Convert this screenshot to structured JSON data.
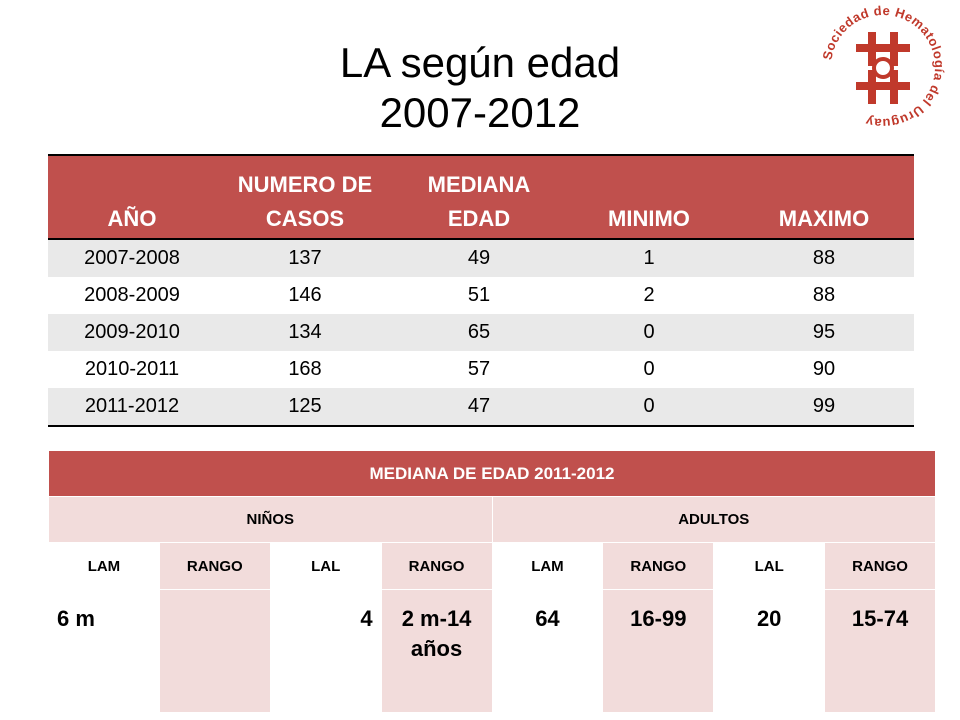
{
  "title": {
    "line1": "LA según edad",
    "line2": "2007-2012"
  },
  "logo": {
    "text": "Sociedad de Hematología del Uruguay",
    "color": "#c0392b"
  },
  "table1": {
    "headers": [
      "AÑO",
      "NUMERO DE CASOS",
      "MEDIANA EDAD",
      "MINIMO",
      "MAXIMO"
    ],
    "header_lines": [
      [
        "AÑO"
      ],
      [
        "NUMERO DE",
        "CASOS"
      ],
      [
        "MEDIANA",
        "EDAD"
      ],
      [
        "MINIMO"
      ],
      [
        "MAXIMO"
      ]
    ],
    "rows": [
      [
        "2007-2008",
        "137",
        "49",
        "1",
        "88"
      ],
      [
        "2008-2009",
        "146",
        "51",
        "2",
        "88"
      ],
      [
        "2009-2010",
        "134",
        "65",
        "0",
        "95"
      ],
      [
        "2010-2011",
        "168",
        "57",
        "0",
        "90"
      ],
      [
        "2011-2012",
        "125",
        "47",
        "0",
        "99"
      ]
    ]
  },
  "table2": {
    "title": "MEDIANA DE EDAD 2011-2012",
    "groups": [
      "NIÑOS",
      "ADULTOS"
    ],
    "subheaders": [
      "LAM",
      "RANGO",
      "LAL",
      "RANGO",
      "LAM",
      "RANGO",
      "LAL",
      "RANGO"
    ],
    "values": [
      "6 m",
      "",
      "4",
      "2 m-14 años",
      "64",
      "16-99",
      "20",
      "15-74"
    ]
  },
  "colors": {
    "header_red": "#c0504d",
    "pink": "#f2dcdb",
    "stripe_gray": "#e9e9e9"
  }
}
